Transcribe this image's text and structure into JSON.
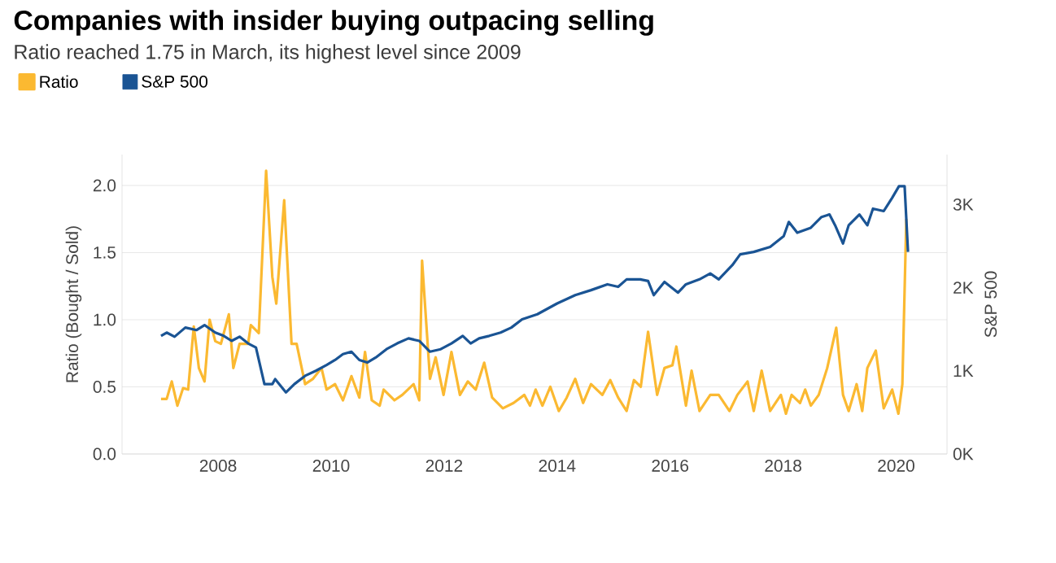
{
  "chart_data": {
    "type": "line",
    "title": "Companies with insider buying outpacing selling",
    "subtitle": "Ratio reached 1.75 in March, its highest level since 2009",
    "ylabel": "Ratio (Bought / Sold)",
    "y2label": "S&P 500",
    "xlim": [
      2006.3,
      2020.9
    ],
    "xticks": [
      2008,
      2010,
      2012,
      2014,
      2016,
      2018,
      2020
    ],
    "ylim": [
      0,
      2.23
    ],
    "yticks": [
      {
        "value": 0,
        "label": "0.0"
      },
      0.5,
      {
        "value": 1,
        "label": "1.0"
      },
      1.5,
      {
        "value": 2,
        "label": "2.0"
      }
    ],
    "y2lim": [
      0,
      3600
    ],
    "y2ticks": [
      {
        "value": 0,
        "label": "0K"
      },
      {
        "value": 1000,
        "label": "1K"
      },
      {
        "value": 2000,
        "label": "2K"
      },
      {
        "value": 3000,
        "label": "3K"
      }
    ],
    "grid": "y",
    "legend": "top left",
    "marker": "none",
    "line_style": "solid",
    "series": [
      {
        "name": "Ratio",
        "color": "#fbb931",
        "x": [
          2006.99,
          2007.09,
          2007.18,
          2007.28,
          2007.38,
          2007.47,
          2007.57,
          2007.66,
          2007.76,
          2007.85,
          2007.95,
          2008.05,
          2008.19,
          2008.27,
          2008.38,
          2008.53,
          2008.58,
          2008.72,
          2008.85,
          2008.96,
          2009.03,
          2009.17,
          2009.3,
          2009.39,
          2009.54,
          2009.68,
          2009.83,
          2009.92,
          2010.07,
          2010.21,
          2010.31,
          2010.36,
          2010.5,
          2010.6,
          2010.72,
          2010.86,
          2010.93,
          2011.12,
          2011.26,
          2011.46,
          2011.56,
          2011.61,
          2011.75,
          2011.85,
          2011.99,
          2012.13,
          2012.28,
          2012.42,
          2012.56,
          2012.71,
          2012.85,
          2013.04,
          2013.23,
          2013.42,
          2013.52,
          2013.62,
          2013.74,
          2013.88,
          2014.03,
          2014.17,
          2014.32,
          2014.46,
          2014.6,
          2014.8,
          2014.94,
          2015.08,
          2015.23,
          2015.36,
          2015.48,
          2015.61,
          2015.77,
          2015.9,
          2016.04,
          2016.11,
          2016.28,
          2016.38,
          2016.52,
          2016.71,
          2016.86,
          2017.05,
          2017.19,
          2017.37,
          2017.48,
          2017.62,
          2017.77,
          2017.96,
          2018.05,
          2018.15,
          2018.3,
          2018.39,
          2018.49,
          2018.63,
          2018.78,
          2018.94,
          2019.06,
          2019.16,
          2019.3,
          2019.4,
          2019.49,
          2019.64,
          2019.78,
          2019.93,
          2020.04,
          2020.11,
          2020.18
        ],
        "values": [
          0.41,
          0.41,
          0.54,
          0.36,
          0.49,
          0.48,
          0.95,
          0.64,
          0.54,
          1.0,
          0.84,
          0.82,
          1.04,
          0.64,
          0.82,
          0.82,
          0.96,
          0.9,
          2.11,
          1.32,
          1.12,
          1.89,
          0.82,
          0.82,
          0.52,
          0.56,
          0.64,
          0.48,
          0.52,
          0.4,
          0.52,
          0.58,
          0.42,
          0.76,
          0.4,
          0.36,
          0.48,
          0.4,
          0.44,
          0.52,
          0.4,
          1.44,
          0.56,
          0.72,
          0.44,
          0.76,
          0.44,
          0.54,
          0.48,
          0.68,
          0.42,
          0.34,
          0.38,
          0.44,
          0.36,
          0.48,
          0.36,
          0.5,
          0.32,
          0.42,
          0.56,
          0.38,
          0.52,
          0.44,
          0.55,
          0.42,
          0.32,
          0.55,
          0.5,
          0.91,
          0.44,
          0.64,
          0.66,
          0.8,
          0.36,
          0.62,
          0.32,
          0.44,
          0.44,
          0.32,
          0.44,
          0.54,
          0.32,
          0.62,
          0.32,
          0.44,
          0.3,
          0.44,
          0.38,
          0.48,
          0.36,
          0.44,
          0.64,
          0.94,
          0.44,
          0.32,
          0.52,
          0.32,
          0.64,
          0.77,
          0.34,
          0.48,
          0.3,
          0.52,
          1.75
        ]
      },
      {
        "name": "S&P 500",
        "color": "#1a5494",
        "axis": "y2",
        "x": [
          2006.99,
          2007.09,
          2007.23,
          2007.42,
          2007.62,
          2007.76,
          2007.95,
          2008.1,
          2008.24,
          2008.38,
          2008.53,
          2008.67,
          2008.82,
          2008.96,
          2009.01,
          2009.2,
          2009.35,
          2009.54,
          2009.73,
          2009.92,
          2010.07,
          2010.21,
          2010.36,
          2010.5,
          2010.64,
          2010.79,
          2010.98,
          2011.17,
          2011.37,
          2011.56,
          2011.75,
          2011.94,
          2012.13,
          2012.33,
          2012.47,
          2012.62,
          2012.8,
          2013.0,
          2013.19,
          2013.38,
          2013.65,
          2014.0,
          2014.32,
          2014.6,
          2014.89,
          2015.08,
          2015.23,
          2015.47,
          2015.61,
          2015.71,
          2015.9,
          2016.14,
          2016.28,
          2016.52,
          2016.71,
          2016.86,
          2017.1,
          2017.24,
          2017.48,
          2017.77,
          2018.01,
          2018.1,
          2018.25,
          2018.49,
          2018.68,
          2018.82,
          2018.92,
          2019.06,
          2019.16,
          2019.35,
          2019.49,
          2019.59,
          2019.78,
          2019.93,
          2020.05,
          2020.15,
          2020.21
        ],
        "values": [
          1420,
          1460,
          1410,
          1520,
          1490,
          1550,
          1460,
          1420,
          1360,
          1410,
          1330,
          1280,
          840,
          840,
          900,
          740,
          840,
          940,
          1000,
          1070,
          1130,
          1200,
          1230,
          1130,
          1100,
          1160,
          1260,
          1330,
          1390,
          1360,
          1230,
          1260,
          1330,
          1420,
          1330,
          1390,
          1420,
          1460,
          1520,
          1620,
          1680,
          1810,
          1910,
          1970,
          2040,
          2010,
          2100,
          2100,
          2080,
          1910,
          2070,
          1940,
          2040,
          2100,
          2170,
          2100,
          2270,
          2400,
          2430,
          2490,
          2620,
          2790,
          2660,
          2720,
          2850,
          2880,
          2750,
          2530,
          2750,
          2880,
          2750,
          2950,
          2920,
          3080,
          3220,
          3220,
          2430
        ]
      }
    ]
  }
}
